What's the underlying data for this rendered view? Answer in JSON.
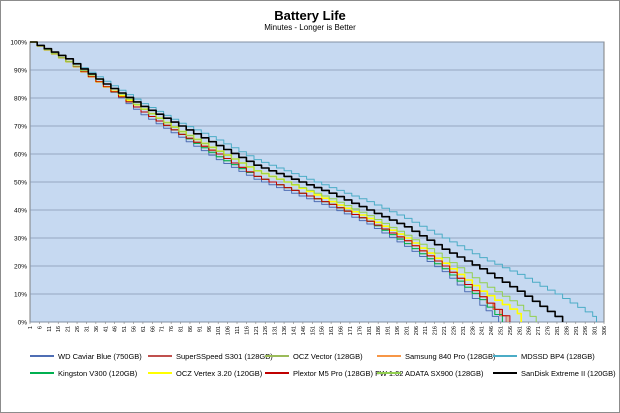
{
  "chart_data": {
    "type": "line",
    "title": "Battery Life",
    "subtitle": "Minutes - Longer is Better",
    "xlabel": "",
    "ylabel": "",
    "xlim": [
      1,
      306
    ],
    "ylim": [
      0,
      100
    ],
    "x_tick_labels": [
      "1",
      "6",
      "11",
      "16",
      "21",
      "26",
      "31",
      "36",
      "41",
      "46",
      "51",
      "56",
      "61",
      "66",
      "71",
      "76",
      "81",
      "86",
      "91",
      "96",
      "101",
      "106",
      "111",
      "116",
      "121",
      "126",
      "131",
      "136",
      "141",
      "146",
      "151",
      "156",
      "161",
      "166",
      "171",
      "176",
      "181",
      "186",
      "191",
      "196",
      "201",
      "206",
      "211",
      "216",
      "221",
      "226",
      "231",
      "236",
      "241",
      "246",
      "251",
      "256",
      "261",
      "266",
      "271",
      "276",
      "281",
      "286",
      "291",
      "296",
      "301",
      "306"
    ],
    "y_tick_labels": [
      "0%",
      "10%",
      "20%",
      "30%",
      "40%",
      "50%",
      "60%",
      "70%",
      "80%",
      "90%",
      "100%"
    ],
    "grid": "horizontal",
    "plot_background": "#c6d9f1",
    "legend_position": "bottom",
    "series": [
      {
        "name": "WD Caviar Blue (750GB)",
        "color": "#4f6eb4",
        "values": [
          [
            1,
            100
          ],
          [
            20,
            93
          ],
          [
            40,
            84
          ],
          [
            60,
            74
          ],
          [
            80,
            66
          ],
          [
            100,
            58
          ],
          [
            120,
            51
          ],
          [
            140,
            46
          ],
          [
            160,
            41
          ],
          [
            180,
            35
          ],
          [
            200,
            27
          ],
          [
            220,
            18
          ],
          [
            240,
            6
          ],
          [
            250,
            0
          ]
        ]
      },
      {
        "name": "SuperSSpeed S301 (128GB)",
        "color": "#c0504d",
        "values": [
          [
            1,
            100
          ],
          [
            20,
            93
          ],
          [
            40,
            84
          ],
          [
            60,
            75
          ],
          [
            80,
            67
          ],
          [
            100,
            60
          ],
          [
            120,
            52
          ],
          [
            140,
            47
          ],
          [
            160,
            42
          ],
          [
            180,
            36
          ],
          [
            200,
            29
          ],
          [
            220,
            20
          ],
          [
            240,
            9
          ],
          [
            254,
            0
          ]
        ]
      },
      {
        "name": "OCZ Vector (128GB)",
        "color": "#9bbb59",
        "values": [
          [
            1,
            100
          ],
          [
            20,
            93
          ],
          [
            40,
            84
          ],
          [
            60,
            75
          ],
          [
            80,
            67
          ],
          [
            100,
            59
          ],
          [
            120,
            52
          ],
          [
            140,
            47
          ],
          [
            160,
            42
          ],
          [
            180,
            36
          ],
          [
            200,
            28
          ],
          [
            220,
            19
          ],
          [
            240,
            8
          ],
          [
            252,
            0
          ]
        ]
      },
      {
        "name": "Samsung 840 Pro (128GB)",
        "color": "#f79646",
        "values": [
          [
            1,
            100
          ],
          [
            20,
            93
          ],
          [
            40,
            84
          ],
          [
            60,
            75
          ],
          [
            80,
            67
          ],
          [
            100,
            60
          ],
          [
            120,
            52
          ],
          [
            140,
            47
          ],
          [
            160,
            42
          ],
          [
            180,
            36
          ],
          [
            200,
            29
          ],
          [
            220,
            20
          ],
          [
            240,
            9
          ],
          [
            255,
            0
          ]
        ]
      },
      {
        "name": "MDSSD BP4 (128GB)",
        "color": "#4bacc6",
        "values": [
          [
            1,
            100
          ],
          [
            20,
            94
          ],
          [
            40,
            86
          ],
          [
            60,
            78
          ],
          [
            80,
            71
          ],
          [
            100,
            65
          ],
          [
            120,
            58
          ],
          [
            140,
            53
          ],
          [
            160,
            48
          ],
          [
            180,
            43
          ],
          [
            200,
            37
          ],
          [
            220,
            30
          ],
          [
            240,
            23
          ],
          [
            260,
            17
          ],
          [
            280,
            10
          ],
          [
            300,
            2
          ],
          [
            302,
            0
          ]
        ]
      },
      {
        "name": "Kingston V300 (120GB)",
        "color": "#00b050",
        "values": [
          [
            1,
            100
          ],
          [
            20,
            93
          ],
          [
            40,
            84
          ],
          [
            60,
            75
          ],
          [
            80,
            67
          ],
          [
            100,
            59
          ],
          [
            120,
            52
          ],
          [
            140,
            47
          ],
          [
            160,
            42
          ],
          [
            180,
            36
          ],
          [
            200,
            28
          ],
          [
            220,
            19
          ],
          [
            240,
            8
          ],
          [
            252,
            0
          ]
        ]
      },
      {
        "name": "OCZ Vertex 3.20 (120GB)",
        "color": "#ffff00",
        "values": [
          [
            1,
            100
          ],
          [
            20,
            93
          ],
          [
            40,
            84
          ],
          [
            60,
            76
          ],
          [
            80,
            68
          ],
          [
            100,
            61
          ],
          [
            120,
            54
          ],
          [
            140,
            49
          ],
          [
            160,
            43
          ],
          [
            180,
            37
          ],
          [
            200,
            30
          ],
          [
            220,
            21
          ],
          [
            240,
            11
          ],
          [
            260,
            3
          ],
          [
            262,
            0
          ]
        ]
      },
      {
        "name": "Plextor M5 Pro (128GB) FW 1.02",
        "color": "#c00000",
        "values": [
          [
            1,
            100
          ],
          [
            20,
            93
          ],
          [
            40,
            84
          ],
          [
            60,
            75
          ],
          [
            80,
            67
          ],
          [
            100,
            60
          ],
          [
            120,
            52
          ],
          [
            140,
            47
          ],
          [
            160,
            42
          ],
          [
            180,
            36
          ],
          [
            200,
            29
          ],
          [
            220,
            20
          ],
          [
            240,
            9
          ],
          [
            256,
            0
          ]
        ]
      },
      {
        "name": "ADATA SX900 (128GB)",
        "color": "#92d050",
        "values": [
          [
            1,
            100
          ],
          [
            20,
            93
          ],
          [
            40,
            85
          ],
          [
            60,
            76
          ],
          [
            80,
            68
          ],
          [
            100,
            61
          ],
          [
            120,
            54
          ],
          [
            140,
            49
          ],
          [
            160,
            44
          ],
          [
            180,
            38
          ],
          [
            200,
            31
          ],
          [
            220,
            23
          ],
          [
            240,
            14
          ],
          [
            260,
            6
          ],
          [
            270,
            0
          ]
        ]
      },
      {
        "name": "SanDisk Extreme II (120GB)",
        "color": "#000000",
        "values": [
          [
            1,
            100
          ],
          [
            20,
            94
          ],
          [
            40,
            85
          ],
          [
            60,
            77
          ],
          [
            80,
            70
          ],
          [
            100,
            63
          ],
          [
            120,
            56
          ],
          [
            140,
            51
          ],
          [
            160,
            46
          ],
          [
            180,
            40
          ],
          [
            200,
            34
          ],
          [
            220,
            26
          ],
          [
            240,
            19
          ],
          [
            260,
            11
          ],
          [
            280,
            2
          ],
          [
            284,
            0
          ]
        ]
      }
    ]
  }
}
